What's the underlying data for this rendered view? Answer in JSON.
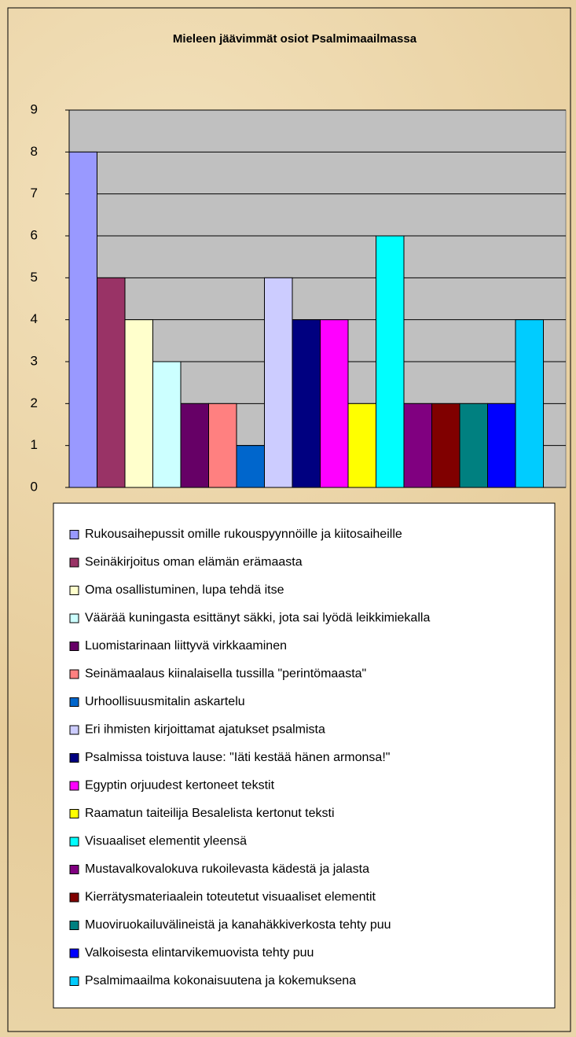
{
  "chart_data": {
    "type": "bar",
    "title": "Mieleen jäävimmät osiot Psalmimaailmassa",
    "series": [
      {
        "name": "Rukousaihepussit omille rukouspyynnöille ja kiitosaiheille",
        "color": "#9999ff",
        "values": [
          8
        ]
      },
      {
        "name": "Seinäkirjoitus oman elämän erämaasta",
        "color": "#993366",
        "values": [
          5
        ]
      },
      {
        "name": "Oma osallistuminen, lupa tehdä itse",
        "color": "#ffffcc",
        "values": [
          4
        ]
      },
      {
        "name": "Väärää kuningasta esittänyt säkki, jota sai lyödä leikkimiekalla",
        "color": "#ccffff",
        "values": [
          3
        ]
      },
      {
        "name": "Luomistarinaan liittyvä virkkaaminen",
        "color": "#660066",
        "values": [
          2
        ]
      },
      {
        "name": "Seinämaalaus kiinalaisella tussilla \"perintömaasta\"",
        "color": "#ff8080",
        "values": [
          2
        ]
      },
      {
        "name": "Urhoollisuusmitalin askartelu",
        "color": "#0066cc",
        "values": [
          1
        ]
      },
      {
        "name": "Eri ihmisten kirjoittamat ajatukset psalmista",
        "color": "#ccccff",
        "values": [
          5
        ]
      },
      {
        "name": "Psalmissa toistuva lause: \"Iäti kestää hänen armonsa!\"",
        "color": "#000080",
        "values": [
          4
        ]
      },
      {
        "name": "Egyptin orjuudest kertoneet tekstit",
        "color": "#ff00ff",
        "values": [
          4
        ]
      },
      {
        "name": "Raamatun taiteilija Besalelista kertonut teksti",
        "color": "#ffff00",
        "values": [
          2
        ]
      },
      {
        "name": "Visuaaliset elementit yleensä",
        "color": "#00ffff",
        "values": [
          6
        ]
      },
      {
        "name": "Mustavalkovalokuva rukoilevasta kädestä ja jalasta",
        "color": "#800080",
        "values": [
          2
        ]
      },
      {
        "name": "Kierrätysmateriaalein toteutetut visuaaliset elementit",
        "color": "#800000",
        "values": [
          2
        ]
      },
      {
        "name": "Muoviruokailuvälineistä ja kanahäkkiverkosta tehty puu",
        "color": "#008080",
        "values": [
          2
        ]
      },
      {
        "name": "Valkoisesta elintarvikemuovista tehty puu",
        "color": "#0000ff",
        "values": [
          2
        ]
      },
      {
        "name": "Psalmimaailma kokonaisuutena ja kokemuksena",
        "color": "#00ccff",
        "values": [
          4
        ]
      }
    ],
    "ylim": [
      0,
      9
    ],
    "yticks": [
      0,
      1,
      2,
      3,
      4,
      5,
      6,
      7,
      8,
      9
    ],
    "grid": true,
    "legend": "bottom"
  }
}
